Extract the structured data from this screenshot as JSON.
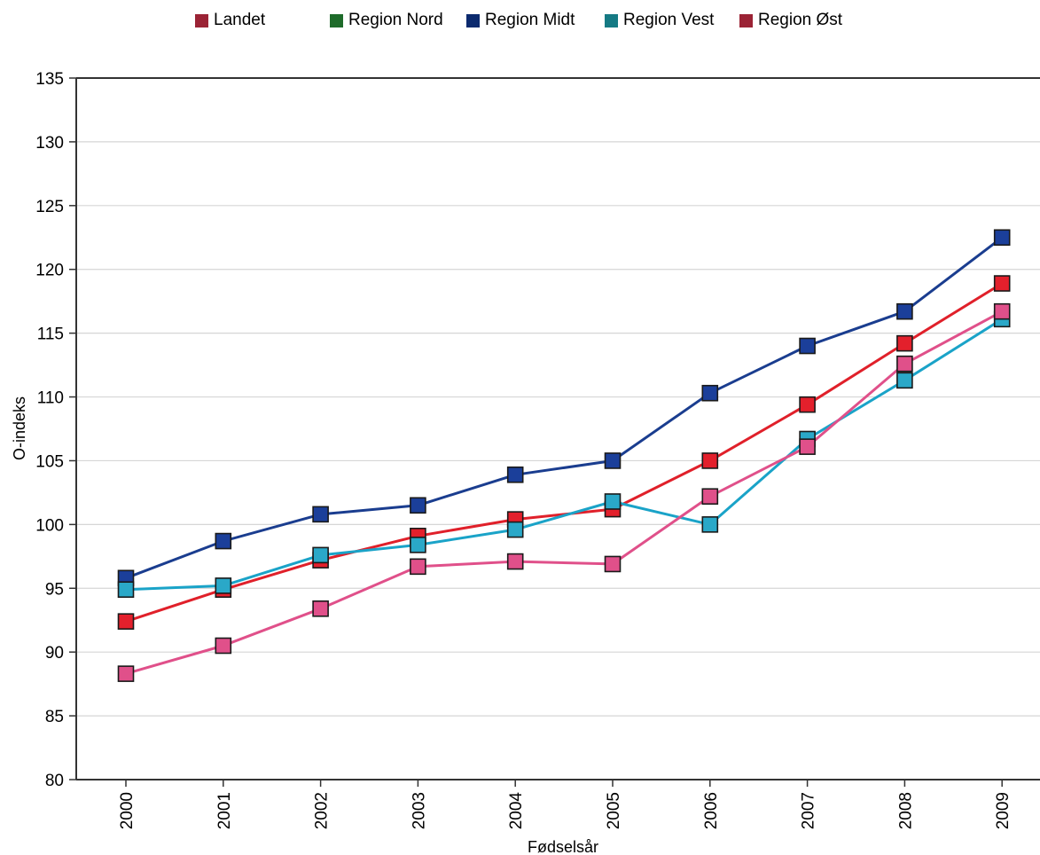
{
  "chart_data": {
    "type": "line",
    "title": "",
    "xlabel": "Fødselsår",
    "ylabel": "O-indeks",
    "x": [
      "2000",
      "2001",
      "2002",
      "2003",
      "2004",
      "2005",
      "2006",
      "2007",
      "2008",
      "2009"
    ],
    "ylim": [
      80,
      135
    ],
    "yticks": [
      80,
      85,
      90,
      95,
      100,
      105,
      110,
      115,
      120,
      125,
      130,
      135
    ],
    "grid": true,
    "legend_position": "top",
    "legend": [
      {
        "name": "Landet",
        "color": "#9b2335"
      },
      {
        "name": "Region Nord",
        "color": "#1e6b2a"
      },
      {
        "name": "Region Midt",
        "color": "#0b2a6e"
      },
      {
        "name": "Region Vest",
        "color": "#157a84"
      },
      {
        "name": "Region Øst",
        "color": "#9b2335"
      }
    ],
    "series": [
      {
        "name": "Region Midt",
        "line_color": "#1a3d8f",
        "marker_color": "#1b3f9a",
        "values": [
          95.8,
          98.7,
          100.8,
          101.5,
          103.9,
          105.0,
          110.3,
          114.0,
          116.7,
          122.5
        ]
      },
      {
        "name": "Landet",
        "line_color": "#e0202a",
        "marker_color": "#e3202c",
        "values": [
          92.4,
          94.9,
          97.2,
          99.1,
          100.4,
          101.2,
          105.0,
          109.4,
          114.2,
          118.9
        ]
      },
      {
        "name": "Region Vest",
        "line_color": "#1aa3c8",
        "marker_color": "#2aa8c8",
        "values": [
          94.9,
          95.2,
          97.6,
          98.4,
          99.6,
          101.8,
          100.0,
          106.7,
          111.3,
          116.1
        ]
      },
      {
        "name": "Region Øst",
        "line_color": "#e0508a",
        "marker_color": "#e0508a",
        "values": [
          88.3,
          90.5,
          93.4,
          96.7,
          97.1,
          96.9,
          102.2,
          106.1,
          112.6,
          116.7
        ]
      }
    ]
  }
}
